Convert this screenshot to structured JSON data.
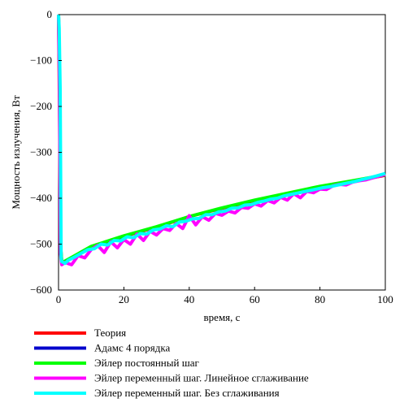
{
  "chart_data": {
    "type": "line",
    "xlabel": "время, с",
    "ylabel": "Мощность излучения, Вт",
    "xlim": [
      0,
      100
    ],
    "ylim": [
      -600,
      0
    ],
    "xticks": [
      "0",
      "20",
      "40",
      "60",
      "80",
      "100"
    ],
    "yticks": [
      "0",
      "100",
      "200",
      "300",
      "400",
      "500",
      "600"
    ],
    "grid": false,
    "legend_position": "bottom",
    "series": [
      {
        "name": "Теория",
        "color": "#ff0000",
        "x": [
          0,
          0.3,
          0.6,
          1,
          2,
          5,
          10,
          20,
          30,
          40,
          50,
          60,
          70,
          80,
          90,
          100
        ],
        "y": [
          0,
          -200,
          -500,
          -540,
          -538,
          -527,
          -507,
          -483,
          -463,
          -440,
          -422,
          -405,
          -390,
          -375,
          -363,
          -350
        ]
      },
      {
        "name": "Адамс 4 порядка",
        "color": "#0000cc",
        "x": [
          0,
          0.3,
          0.6,
          1,
          2,
          5,
          10,
          20,
          30,
          40,
          50,
          60,
          70,
          80,
          90,
          100
        ],
        "y": [
          0,
          -200,
          -500,
          -540,
          -538,
          -527,
          -507,
          -483,
          -463,
          -440,
          -422,
          -405,
          -390,
          -375,
          -363,
          -350
        ]
      },
      {
        "name": "Эйлер постоянный шаг",
        "color": "#00ff00",
        "x": [
          0,
          0.3,
          0.6,
          1,
          2,
          5,
          10,
          20,
          30,
          40,
          50,
          60,
          70,
          80,
          90,
          100
        ],
        "y": [
          0,
          -120,
          -500,
          -540,
          -537,
          -525,
          -505,
          -482,
          -462,
          -440,
          -421,
          -404,
          -389,
          -374,
          -362,
          -349
        ]
      },
      {
        "name": "Эйлер переменный шаг. Линейное сглаживание",
        "color": "#ff00ff",
        "x": [
          0,
          0.3,
          0.6,
          1,
          2,
          4,
          6,
          8,
          10,
          12,
          14,
          16,
          18,
          20,
          22,
          24,
          26,
          28,
          30,
          32,
          34,
          36,
          38,
          40,
          42,
          44,
          46,
          48,
          50,
          52,
          54,
          56,
          58,
          60,
          62,
          64,
          66,
          68,
          70,
          72,
          74,
          76,
          78,
          80,
          82,
          84,
          86,
          88,
          90,
          92,
          94,
          96,
          98,
          100
        ],
        "y": [
          0,
          -150,
          -520,
          -545,
          -540,
          -545,
          -525,
          -530,
          -512,
          -503,
          -518,
          -495,
          -508,
          -490,
          -500,
          -478,
          -492,
          -472,
          -480,
          -466,
          -470,
          -455,
          -466,
          -438,
          -458,
          -440,
          -448,
          -433,
          -437,
          -428,
          -432,
          -420,
          -422,
          -412,
          -417,
          -405,
          -410,
          -398,
          -404,
          -390,
          -399,
          -385,
          -388,
          -380,
          -381,
          -373,
          -370,
          -371,
          -365,
          -362,
          -360,
          -356,
          -352,
          -348
        ]
      },
      {
        "name": "Эйлер переменный шаг. Без сглаживания",
        "color": "#00ffff",
        "x": [
          0,
          0.2,
          0.5,
          0.8,
          1,
          2,
          3,
          5,
          7,
          9,
          11,
          13,
          15,
          17,
          19,
          21,
          23,
          25,
          27,
          29,
          31,
          33,
          35,
          37,
          39,
          41,
          43,
          45,
          47,
          49,
          51,
          53,
          55,
          57,
          59,
          61,
          63,
          65,
          67,
          69,
          71,
          73,
          75,
          77,
          79,
          81,
          83,
          85,
          87,
          89,
          91,
          93,
          95,
          97,
          100
        ],
        "y": [
          0,
          -30,
          -160,
          -530,
          -538,
          -542,
          -535,
          -528,
          -520,
          -512,
          -510,
          -500,
          -502,
          -492,
          -493,
          -484,
          -486,
          -477,
          -478,
          -469,
          -467,
          -460,
          -462,
          -452,
          -450,
          -445,
          -444,
          -436,
          -436,
          -430,
          -428,
          -422,
          -421,
          -415,
          -414,
          -409,
          -406,
          -402,
          -400,
          -395,
          -392,
          -389,
          -386,
          -383,
          -380,
          -377,
          -375,
          -372,
          -369,
          -366,
          -363,
          -359,
          -356,
          -352,
          -346
        ]
      }
    ]
  }
}
